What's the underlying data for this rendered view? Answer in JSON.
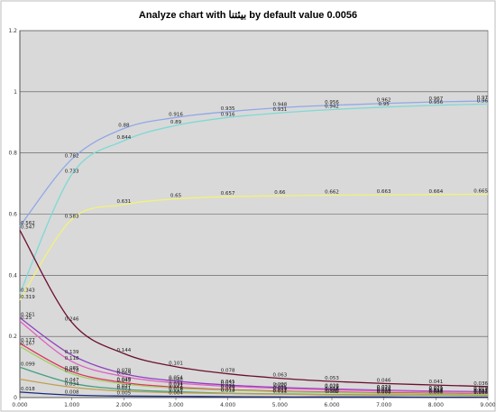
{
  "chart_data": {
    "type": "line",
    "title": "Analyze chart with بيئتنا by default value 0.0056",
    "xlabel": "",
    "ylabel": "",
    "xlim": [
      0,
      9
    ],
    "ylim": [
      0,
      1.2
    ],
    "x_ticks": [
      "0.000",
      "1.000",
      "2.000",
      "3.000",
      "4.000",
      "5.000",
      "6.000",
      "7.000",
      "8.000",
      "9.000"
    ],
    "y_ticks": [
      "0",
      "0.2",
      "0.4",
      "0.6",
      "0.8",
      "1",
      "1.2"
    ],
    "grid": "horizontal",
    "legend": "none",
    "plot_background": "#d9d9d9",
    "series": [
      {
        "color": "#8fa8e8",
        "x": [
          0,
          1,
          2,
          3,
          4,
          5,
          6,
          7,
          8,
          9
        ],
        "y": [
          0.56,
          0.78,
          0.88,
          0.916,
          0.935,
          0.948,
          0.956,
          0.962,
          0.967,
          0.97
        ],
        "labels": [
          "0.562",
          "0.782",
          "0.88",
          "0.916",
          "0.935",
          "0.948",
          "0.956",
          "0.962",
          "0.967",
          "0.97"
        ]
      },
      {
        "color": "#7ed9d4",
        "x": [
          0,
          1,
          2,
          3,
          4,
          5,
          6,
          7,
          8,
          9
        ],
        "y": [
          0.34,
          0.73,
          0.84,
          0.89,
          0.916,
          0.931,
          0.942,
          0.95,
          0.956,
          0.96
        ],
        "labels": [
          "0.343",
          "0.733",
          "0.844",
          "0.89",
          "0.916",
          "0.931",
          "0.942",
          "0.95",
          "0.956",
          "0.96"
        ]
      },
      {
        "color": "#f2f27a",
        "x": [
          0,
          1,
          2,
          3,
          4,
          5,
          6,
          7,
          8,
          9
        ],
        "y": [
          0.319,
          0.583,
          0.631,
          0.65,
          0.657,
          0.66,
          0.662,
          0.663,
          0.664,
          0.665
        ],
        "labels": [
          "0.319",
          "0.583",
          "0.631",
          "0.65",
          "0.657",
          "0.66",
          "0.662",
          "0.663",
          "0.664",
          "0.665"
        ]
      },
      {
        "color": "#6b1030",
        "x": [
          0,
          1,
          2,
          3,
          4,
          5,
          6,
          7,
          8,
          9
        ],
        "y": [
          0.547,
          0.246,
          0.144,
          0.101,
          0.078,
          0.063,
          0.053,
          0.046,
          0.041,
          0.036
        ],
        "labels": [
          "0.547",
          "0.246",
          "0.144",
          "0.101",
          "0.078",
          "0.063",
          "0.053",
          "0.046",
          "0.041",
          "0.036"
        ]
      },
      {
        "color": "#9040c0",
        "x": [
          0,
          1,
          2,
          3,
          4,
          5,
          6,
          7,
          8,
          9
        ],
        "y": [
          0.261,
          0.139,
          0.078,
          0.054,
          0.041,
          0.033,
          0.028,
          0.024,
          0.021,
          0.019
        ],
        "labels": [
          "0.261",
          "0.139",
          "0.078",
          "0.054",
          "0.041",
          "0.033",
          "0.028",
          "0.024",
          "0.021",
          "0.019"
        ]
      },
      {
        "color": "#e060c0",
        "x": [
          0,
          1,
          2,
          3,
          4,
          5,
          6,
          7,
          8,
          9
        ],
        "y": [
          0.25,
          0.118,
          0.069,
          0.048,
          0.037,
          0.03,
          0.025,
          0.022,
          0.019,
          0.017
        ],
        "labels": [
          "0.25",
          "0.118",
          "0.069",
          "0.048",
          "0.037",
          "0.03",
          "0.025",
          "0.022",
          "0.019",
          "0.017"
        ]
      },
      {
        "color": "#e03060",
        "x": [
          0,
          1,
          2,
          3,
          4,
          5,
          6,
          7,
          8,
          9
        ],
        "y": [
          0.177,
          0.085,
          0.049,
          0.034,
          0.026,
          0.021,
          0.018,
          0.016,
          0.014,
          0.012
        ],
        "labels": [
          "0.177",
          "0.085",
          "0.049",
          "0.034",
          "0.026",
          "0.021",
          "0.018",
          "0.016",
          "0.014",
          "0.012"
        ]
      },
      {
        "color": "#a0d060",
        "x": [
          0,
          1,
          2,
          3,
          4,
          5,
          6,
          7,
          8,
          9
        ],
        "y": [
          0.167,
          0.078,
          0.045,
          0.031,
          0.024,
          0.019,
          0.016,
          0.014,
          0.012,
          0.011
        ],
        "labels": [
          "0.167",
          "0.078",
          "0.045",
          "0.031",
          "0.024",
          "0.019",
          "0.016",
          "0.014",
          "0.012",
          "0.011"
        ]
      },
      {
        "color": "#40a080",
        "x": [
          0,
          1,
          2,
          3,
          4,
          5,
          6,
          7,
          8,
          9
        ],
        "y": [
          0.099,
          0.047,
          0.027,
          0.019,
          0.014,
          0.012,
          0.01,
          0.009,
          0.008,
          0.007
        ],
        "labels": [
          "0.099",
          "0.047",
          "0.027",
          "0.019",
          "0.014",
          "0.012",
          "0.01",
          "0.009",
          "0.008",
          "0.007"
        ]
      },
      {
        "color": "#c0a050",
        "x": [
          0,
          1,
          2,
          3,
          4,
          5,
          6,
          7,
          8,
          9
        ],
        "y": [
          0.06,
          0.034,
          0.021,
          0.016,
          0.013,
          0.011,
          0.009,
          0.008,
          0.007,
          0.006
        ],
        "labels": [
          "",
          "0.034",
          "0.021",
          "0.016",
          "0.013",
          "0.011",
          "0.009",
          "0.008",
          "0.007",
          "0.006"
        ]
      },
      {
        "color": "#1a2a7a",
        "x": [
          0,
          1,
          2,
          3,
          4,
          5,
          6,
          7,
          8,
          9
        ],
        "y": [
          0.018,
          0.008,
          0.005,
          0.004,
          0.003,
          0.002,
          0.002,
          0.002,
          0.001,
          0.001
        ],
        "labels": [
          "0.018",
          "0.008",
          "0.005",
          "0.004",
          "",
          "",
          "",
          "",
          "",
          ""
        ]
      }
    ]
  }
}
